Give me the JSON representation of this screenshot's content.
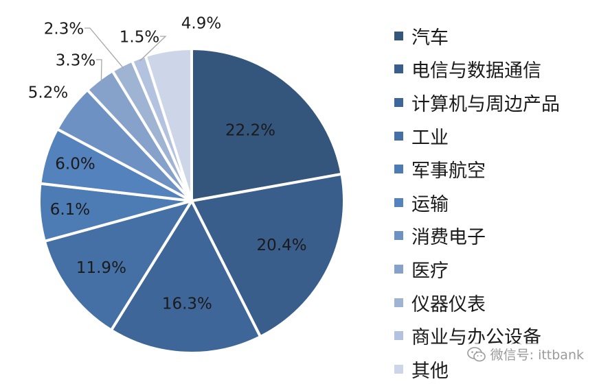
{
  "chart_data": {
    "type": "pie",
    "categories": [
      "汽车",
      "电信与数据通信",
      "计算机与周边产品",
      "工业",
      "军事航空",
      "运输",
      "消费电子",
      "医疗",
      "仪器仪表",
      "商业与办公设备",
      "其他"
    ],
    "values": [
      22.2,
      20.4,
      16.3,
      11.9,
      6.1,
      6.0,
      5.2,
      3.3,
      2.3,
      1.5,
      4.9
    ],
    "value_labels": [
      "22.2%",
      "20.4%",
      "16.3%",
      "11.9%",
      "6.1%",
      "6.0%",
      "5.2%",
      "3.3%",
      "2.3%",
      "1.5%",
      "4.9%"
    ],
    "colors": [
      "#34557c",
      "#3a5e8b",
      "#3e6698",
      "#4570a6",
      "#4d7cb5",
      "#5482bc",
      "#6e91c4",
      "#87a2ca",
      "#9fb3d3",
      "#b3c2de",
      "#cdd6e8"
    ],
    "legend_position": "right",
    "title": "",
    "unit": "%"
  },
  "watermark": {
    "text": "微信号: ittbank",
    "icon": "wechat-icon"
  }
}
